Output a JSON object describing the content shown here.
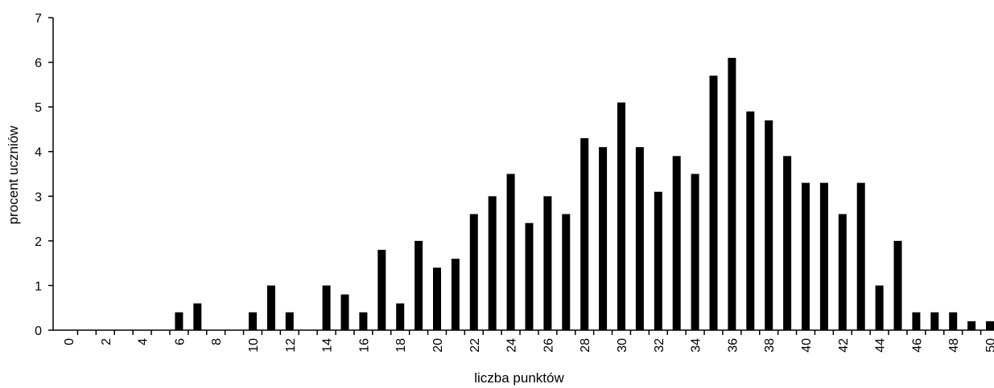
{
  "chart_data": {
    "type": "bar",
    "title": "",
    "xlabel": "liczba punktów",
    "ylabel": "procent uczniów",
    "ylim": [
      0,
      7
    ],
    "yticks": [
      "0",
      "1",
      "2",
      "3",
      "4",
      "5",
      "6",
      "7"
    ],
    "xticks": [
      "0",
      "2",
      "4",
      "6",
      "8",
      "10",
      "12",
      "14",
      "16",
      "18",
      "20",
      "22",
      "24",
      "26",
      "28",
      "30",
      "32",
      "34",
      "36",
      "38",
      "40",
      "42",
      "44",
      "46",
      "48",
      "50"
    ],
    "grid": false,
    "legend": "none",
    "bar_color": "#000000",
    "categories": [
      0,
      1,
      2,
      3,
      4,
      5,
      6,
      7,
      8,
      9,
      10,
      11,
      12,
      13,
      14,
      15,
      16,
      17,
      18,
      19,
      20,
      21,
      22,
      23,
      24,
      25,
      26,
      27,
      28,
      29,
      30,
      31,
      32,
      33,
      34,
      35,
      36,
      37,
      38,
      39,
      40,
      41,
      42,
      43,
      44,
      45,
      46,
      47,
      48,
      49,
      50
    ],
    "values": [
      0,
      0,
      0,
      0,
      0,
      0,
      0.4,
      0.6,
      0,
      0,
      0.4,
      1.0,
      0.4,
      0,
      1.0,
      0.8,
      0.4,
      1.8,
      0.6,
      2.0,
      1.4,
      1.6,
      2.6,
      3.0,
      3.5,
      2.4,
      3.0,
      2.6,
      4.3,
      4.1,
      5.1,
      4.1,
      3.1,
      3.9,
      3.5,
      5.7,
      6.1,
      4.9,
      4.7,
      3.9,
      3.3,
      3.3,
      2.6,
      3.3,
      1.0,
      2.0,
      0.4,
      0.4,
      0.4,
      0.2,
      0.2
    ]
  }
}
